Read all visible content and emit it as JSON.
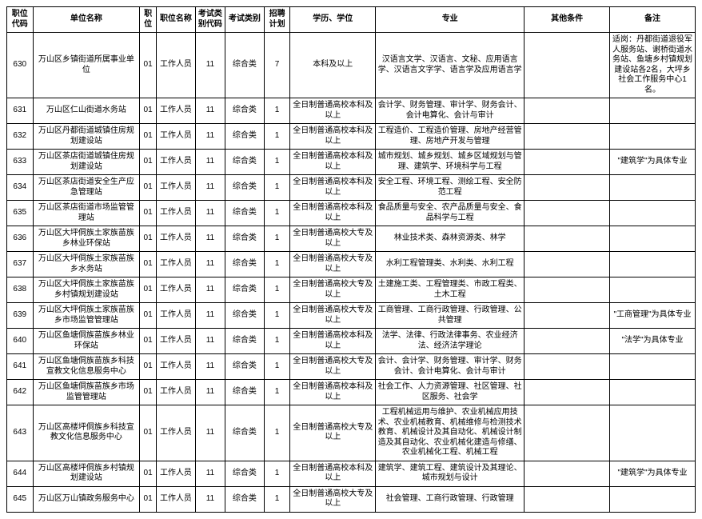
{
  "columns": [
    "职位代码",
    "单位名称",
    "职位",
    "职位名称",
    "考试类别代码",
    "考试类别",
    "招聘计划",
    "学历、学位",
    "专业",
    "其他条件",
    "备注"
  ],
  "rows": [
    {
      "code": "630",
      "unit": "万山区乡镇街道所属事业单位",
      "pos": "01",
      "posName": "工作人员",
      "examCode": "11",
      "examType": "综合类",
      "plan": "7",
      "edu": "本科及以上",
      "major": "汉语言文学、汉语言、文秘、应用语言学、汉语言文字学、语言学及应用语言学",
      "other": "",
      "note": "适岗：丹都街道退役军人服务站、谢桥街道水务站、鱼塘乡村镇规划建设站各2名，大坪乡社会工作服务中心1名。"
    },
    {
      "code": "631",
      "unit": "万山区仁山街道水务站",
      "pos": "01",
      "posName": "工作人员",
      "examCode": "11",
      "examType": "综合类",
      "plan": "1",
      "edu": "全日制普通高校本科及以上",
      "major": "会计学、财务管理、审计学、财务会计、会计电算化、会计与审计",
      "other": "",
      "note": ""
    },
    {
      "code": "632",
      "unit": "万山区丹都街道城镇住房规划建设站",
      "pos": "01",
      "posName": "工作人员",
      "examCode": "11",
      "examType": "综合类",
      "plan": "1",
      "edu": "全日制普通高校本科及以上",
      "major": "工程造价、工程造价管理、房地产经营管理、房地产开发与管理",
      "other": "",
      "note": ""
    },
    {
      "code": "633",
      "unit": "万山区茶店街道城镇住房规划建设站",
      "pos": "01",
      "posName": "工作人员",
      "examCode": "11",
      "examType": "综合类",
      "plan": "1",
      "edu": "全日制普通高校本科及以上",
      "major": "城市规划、城乡规划、城乡区域规划与管理、建筑学、环境科学与工程",
      "other": "",
      "note": "\"建筑学\"为具体专业"
    },
    {
      "code": "634",
      "unit": "万山区茶店街道安全生产应急管理站",
      "pos": "01",
      "posName": "工作人员",
      "examCode": "11",
      "examType": "综合类",
      "plan": "1",
      "edu": "全日制普通高校本科及以上",
      "major": "安全工程、环境工程、测绘工程、安全防范工程",
      "other": "",
      "note": ""
    },
    {
      "code": "635",
      "unit": "万山区茶店街道市场监管管理站",
      "pos": "01",
      "posName": "工作人员",
      "examCode": "11",
      "examType": "综合类",
      "plan": "1",
      "edu": "全日制普通高校本科及以上",
      "major": "食品质量与安全、农产品质量与安全、食品科学与工程",
      "other": "",
      "note": ""
    },
    {
      "code": "636",
      "unit": "万山区大坪侗族土家族苗族乡林业环保站",
      "pos": "01",
      "posName": "工作人员",
      "examCode": "11",
      "examType": "综合类",
      "plan": "1",
      "edu": "全日制普通高校大专及以上",
      "major": "林业技术类、森林资源类、林学",
      "other": "",
      "note": ""
    },
    {
      "code": "637",
      "unit": "万山区大坪侗族土家族苗族乡水务站",
      "pos": "01",
      "posName": "工作人员",
      "examCode": "11",
      "examType": "综合类",
      "plan": "1",
      "edu": "全日制普通高校大专及以上",
      "major": "水利工程管理类、水利类、水利工程",
      "other": "",
      "note": ""
    },
    {
      "code": "638",
      "unit": "万山区大坪侗族土家族苗族乡村镇规划建设站",
      "pos": "01",
      "posName": "工作人员",
      "examCode": "11",
      "examType": "综合类",
      "plan": "1",
      "edu": "全日制普通高校大专及以上",
      "major": "土建施工类、工程管理类、市政工程类、土木工程",
      "other": "",
      "note": ""
    },
    {
      "code": "639",
      "unit": "万山区大坪侗族土家族苗族乡市场监管管理站",
      "pos": "01",
      "posName": "工作人员",
      "examCode": "11",
      "examType": "综合类",
      "plan": "1",
      "edu": "全日制普通高校大专及以上",
      "major": "工商管理、工商行政管理、行政管理、公共管理",
      "other": "",
      "note": "\"工商管理\"为具体专业"
    },
    {
      "code": "640",
      "unit": "万山区鱼塘侗族苗族乡林业环保站",
      "pos": "01",
      "posName": "工作人员",
      "examCode": "11",
      "examType": "综合类",
      "plan": "1",
      "edu": "全日制普通高校本科及以上",
      "major": "法学、法律、行政法律事务、农业经济法、经济法学理论",
      "other": "",
      "note": "\"法学\"为具体专业"
    },
    {
      "code": "641",
      "unit": "万山区鱼塘侗族苗族乡科技宣教文化信息服务中心",
      "pos": "01",
      "posName": "工作人员",
      "examCode": "11",
      "examType": "综合类",
      "plan": "1",
      "edu": "全日制普通高校大专及以上",
      "major": "会计、会计学、财务管理、审计学、财务会计、会计电算化、会计与审计",
      "other": "",
      "note": ""
    },
    {
      "code": "642",
      "unit": "万山区鱼塘侗族苗族乡市场监管管理站",
      "pos": "01",
      "posName": "工作人员",
      "examCode": "11",
      "examType": "综合类",
      "plan": "1",
      "edu": "全日制普通高校本科及以上",
      "major": "社会工作、人力资源管理、社区管理、社区服务、社会学",
      "other": "",
      "note": ""
    },
    {
      "code": "643",
      "unit": "万山区高楼坪侗族乡科技宣教文化信息服务中心",
      "pos": "01",
      "posName": "工作人员",
      "examCode": "11",
      "examType": "综合类",
      "plan": "1",
      "edu": "全日制普通高校大专及以上",
      "major": "工程机械运用与维护、农业机械应用技术、农业机械教育、机械维修与检测技术教育、机械设计及其自动化、机械设计制造及其自动化、农业机械化建造与修缮、农业机械化工程、机械工程",
      "other": "",
      "note": ""
    },
    {
      "code": "644",
      "unit": "万山区高楼坪侗族乡村镇规划建设站",
      "pos": "01",
      "posName": "工作人员",
      "examCode": "11",
      "examType": "综合类",
      "plan": "1",
      "edu": "全日制普通高校本科及以上",
      "major": "建筑学、建筑工程、建筑设计及其理论、城市规划与设计",
      "other": "",
      "note": "\"建筑学\"为具体专业"
    },
    {
      "code": "645",
      "unit": "万山区万山镇政务服务中心",
      "pos": "01",
      "posName": "工作人员",
      "examCode": "11",
      "examType": "综合类",
      "plan": "1",
      "edu": "全日制普通高校大专及以上",
      "major": "社会管理、工商行政管理、行政管理",
      "other": "",
      "note": ""
    }
  ]
}
